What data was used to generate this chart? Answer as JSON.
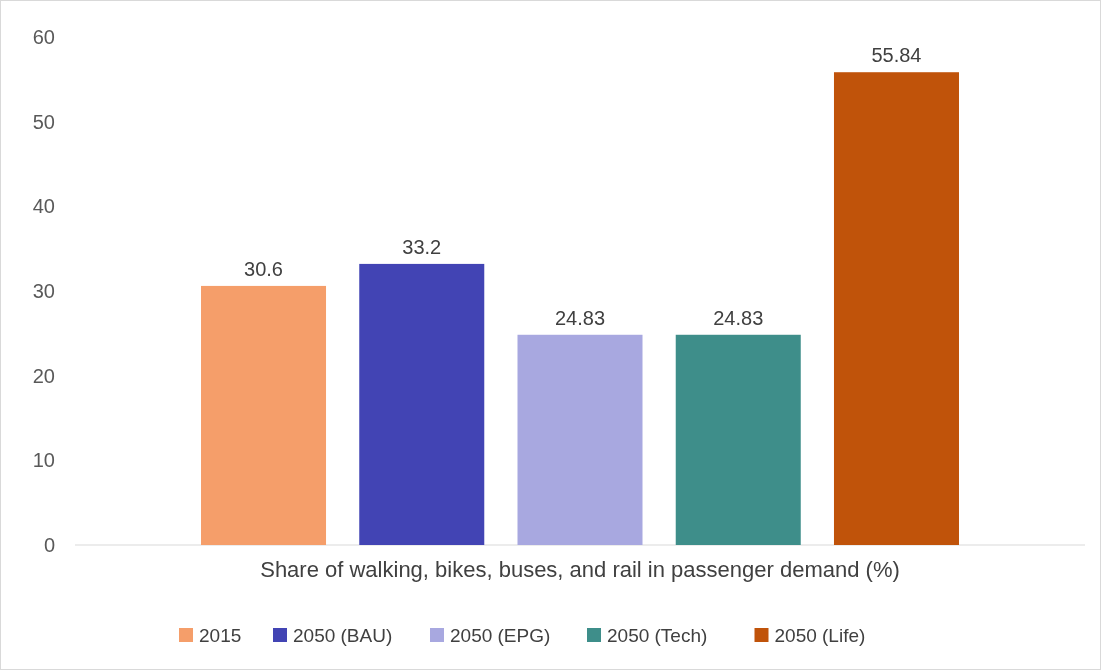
{
  "chart_data": {
    "type": "bar",
    "categories": [
      "Share of walking, bikes, buses, and rail in passenger demand (%)"
    ],
    "series": [
      {
        "name": "2015",
        "color": "#f59e6a",
        "values": [
          30.6
        ]
      },
      {
        "name": "2050 (BAU)",
        "color": "#4244b4",
        "values": [
          33.2
        ]
      },
      {
        "name": "2050 (EPG)",
        "color": "#a8a8e0",
        "values": [
          24.83
        ]
      },
      {
        "name": "2050 (Tech)",
        "color": "#3e8e8a",
        "values": [
          24.83
        ]
      },
      {
        "name": "2050 (Life)",
        "color": "#c0530a",
        "values": [
          55.84
        ]
      }
    ],
    "ylim": [
      0,
      60
    ],
    "yticks": [
      0,
      10,
      20,
      30,
      40,
      50,
      60
    ],
    "data_labels": true,
    "legend": "bottom",
    "grid": false
  }
}
